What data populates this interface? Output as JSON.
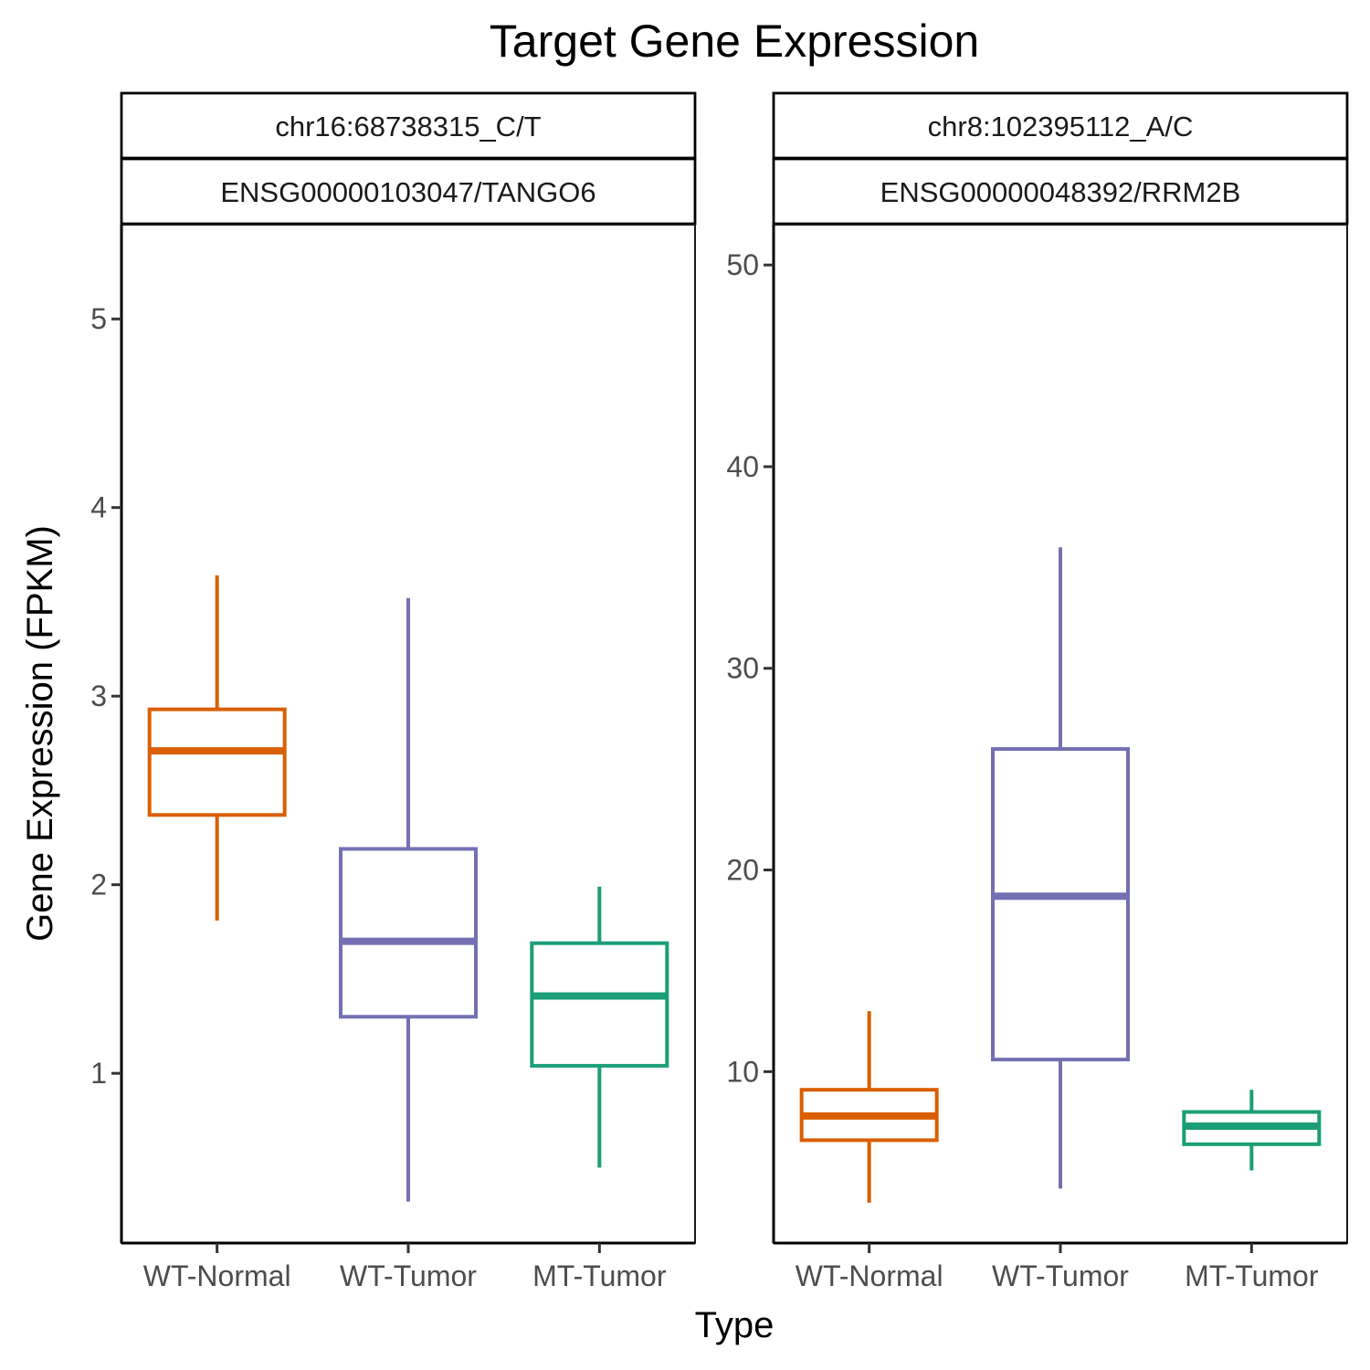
{
  "chart_data": {
    "type": "box",
    "title": "Target Gene Expression",
    "xlabel": "Type",
    "ylabel": "Gene Expression (FPKM)",
    "categories": [
      "WT-Normal",
      "WT-Tumor",
      "MT-Tumor"
    ],
    "colors": {
      "WT-Normal": "#D95F02",
      "WT-Tumor": "#7570B3",
      "MT-Tumor": "#1B9E77"
    },
    "grid": false,
    "legend": "none",
    "panels": [
      {
        "strip_top": "chr16:68738315_C/T",
        "strip_bottom": "ENSG00000103047/TANGO6",
        "ylim": [
          0.1,
          5.5
        ],
        "yticks": [
          1,
          2,
          3,
          4,
          5
        ],
        "boxes": [
          {
            "category": "WT-Normal",
            "whisker_low": 1.81,
            "q1": 2.37,
            "median": 2.71,
            "q3": 2.93,
            "whisker_high": 3.64
          },
          {
            "category": "WT-Tumor",
            "whisker_low": 0.32,
            "q1": 1.3,
            "median": 1.7,
            "q3": 2.19,
            "whisker_high": 3.52
          },
          {
            "category": "MT-Tumor",
            "whisker_low": 0.5,
            "q1": 1.04,
            "median": 1.41,
            "q3": 1.69,
            "whisker_high": 1.99
          }
        ]
      },
      {
        "strip_top": "chr8:102395112_A/C",
        "strip_bottom": "ENSG00000048392/RRM2B",
        "ylim": [
          1.5,
          52
        ],
        "yticks": [
          10,
          20,
          30,
          40,
          50
        ],
        "boxes": [
          {
            "category": "WT-Normal",
            "whisker_low": 3.5,
            "q1": 6.6,
            "median": 7.8,
            "q3": 9.1,
            "whisker_high": 13.0
          },
          {
            "category": "WT-Tumor",
            "whisker_low": 4.2,
            "q1": 10.6,
            "median": 18.7,
            "q3": 26.0,
            "whisker_high": 36.0
          },
          {
            "category": "MT-Tumor",
            "whisker_low": 5.1,
            "q1": 6.4,
            "median": 7.3,
            "q3": 8.0,
            "whisker_high": 9.1
          }
        ]
      }
    ]
  }
}
